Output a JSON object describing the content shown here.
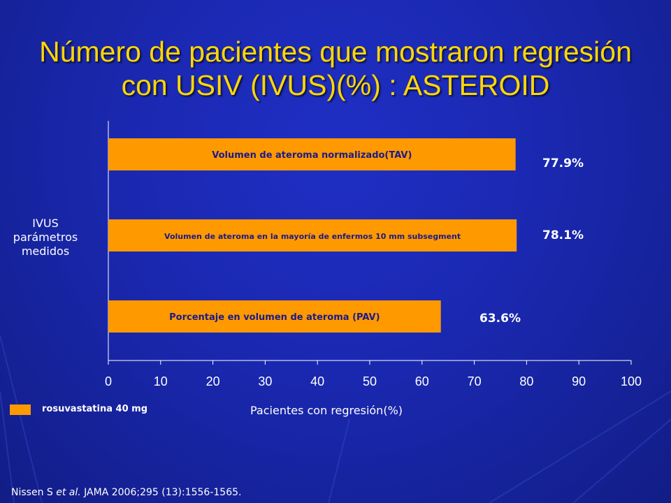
{
  "slide": {
    "title_line1": "Número  de pacientes que mostraron regresión",
    "title_line2": "con USIV (IVUS)(%) : ASTEROID",
    "citation_pre": "Nissen S ",
    "citation_em": "et al.",
    "citation_post": " JAMA 2006;295 (13):1556-1565."
  },
  "colors": {
    "bar": "#ff9900",
    "bar_text": "#1a1a8c",
    "value_text": "#ffffff",
    "axis": "#ffffff",
    "title": "#ffd700"
  },
  "chart_data": {
    "type": "bar",
    "orientation": "horizontal",
    "ylabel": [
      "IVUS",
      "parámetros",
      "medidos"
    ],
    "xlabel": "Pacientes con regresión(%)",
    "xlim": [
      0,
      100
    ],
    "xticks": [
      "0",
      "10",
      "20",
      "30",
      "40",
      "50",
      "60",
      "70",
      "80",
      "90",
      "100"
    ],
    "grid": false,
    "legend": [
      {
        "name": "rosuvastatina 40 mg",
        "color": "#ff9900"
      }
    ],
    "legend_position": "bottom-left",
    "categories": [
      "Volumen de ateroma normalizado(TAV)",
      "Volumen de ateroma en la mayoría de enfermos 10 mm subsegment",
      "Porcentaje en volumen de ateroma (PAV)"
    ],
    "values": [
      77.9,
      78.1,
      63.6
    ],
    "value_labels": [
      "77.9%",
      "78.1%",
      "63.6%"
    ]
  }
}
